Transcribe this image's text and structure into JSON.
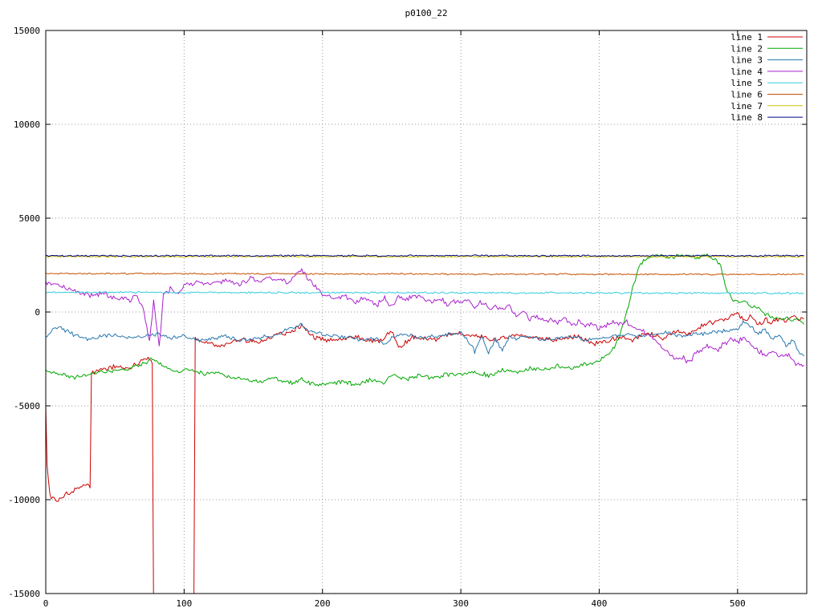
{
  "page": {
    "background": "#ffffff",
    "axis_color": "#000000",
    "grid_color": "#9a9a9a"
  },
  "chart_data": {
    "type": "line",
    "title": "p0100_22",
    "xlabel": "",
    "ylabel": "",
    "xlim": [
      0,
      550
    ],
    "ylim": [
      -15000,
      15000
    ],
    "xticks": [
      0,
      100,
      200,
      300,
      400,
      500
    ],
    "yticks": [
      -15000,
      -10000,
      -5000,
      0,
      5000,
      10000,
      15000
    ],
    "grid": true,
    "grid_style": "dotted",
    "legend_position": "top-right",
    "series": [
      {
        "name": "line 1",
        "color": "#cc0000",
        "noise": 170,
        "seed": 101,
        "keypoints": [
          [
            0,
            -5000
          ],
          [
            1,
            -8200
          ],
          [
            3,
            -9800
          ],
          [
            8,
            -10000
          ],
          [
            15,
            -9700
          ],
          [
            22,
            -9400
          ],
          [
            30,
            -9200
          ],
          [
            32,
            -9300
          ],
          [
            33,
            -3200
          ],
          [
            40,
            -3100
          ],
          [
            50,
            -2900
          ],
          [
            60,
            -3000
          ],
          [
            68,
            -2700
          ],
          [
            74,
            -2500
          ],
          [
            77,
            -2600
          ],
          [
            78,
            -16500
          ],
          [
            107,
            -16500
          ],
          [
            108,
            -1400
          ],
          [
            115,
            -1600
          ],
          [
            125,
            -1800
          ],
          [
            140,
            -1500
          ],
          [
            155,
            -1600
          ],
          [
            165,
            -1200
          ],
          [
            175,
            -1100
          ],
          [
            185,
            -700
          ],
          [
            195,
            -1400
          ],
          [
            210,
            -1500
          ],
          [
            225,
            -1300
          ],
          [
            240,
            -1600
          ],
          [
            250,
            -1000
          ],
          [
            255,
            -1900
          ],
          [
            265,
            -1300
          ],
          [
            280,
            -1500
          ],
          [
            295,
            -1100
          ],
          [
            310,
            -1300
          ],
          [
            325,
            -1500
          ],
          [
            340,
            -1200
          ],
          [
            355,
            -1400
          ],
          [
            370,
            -1500
          ],
          [
            385,
            -1300
          ],
          [
            395,
            -1700
          ],
          [
            405,
            -1600
          ],
          [
            415,
            -1300
          ],
          [
            425,
            -1500
          ],
          [
            435,
            -1100
          ],
          [
            445,
            -1400
          ],
          [
            455,
            -1000
          ],
          [
            465,
            -1200
          ],
          [
            475,
            -700
          ],
          [
            485,
            -500
          ],
          [
            495,
            -300
          ],
          [
            500,
            -100
          ],
          [
            505,
            -400
          ],
          [
            510,
            -200
          ],
          [
            515,
            -700
          ],
          [
            520,
            -400
          ],
          [
            525,
            -600
          ],
          [
            530,
            -300
          ],
          [
            535,
            -500
          ],
          [
            540,
            -200
          ],
          [
            545,
            -400
          ],
          [
            548,
            -300
          ]
        ]
      },
      {
        "name": "line 2",
        "color": "#00a800",
        "noise": 140,
        "seed": 202,
        "keypoints": [
          [
            0,
            -3100
          ],
          [
            10,
            -3300
          ],
          [
            20,
            -3500
          ],
          [
            30,
            -3400
          ],
          [
            40,
            -3200
          ],
          [
            50,
            -3100
          ],
          [
            60,
            -3000
          ],
          [
            70,
            -2800
          ],
          [
            78,
            -2500
          ],
          [
            85,
            -2900
          ],
          [
            95,
            -3200
          ],
          [
            105,
            -3100
          ],
          [
            115,
            -3300
          ],
          [
            125,
            -3200
          ],
          [
            135,
            -3500
          ],
          [
            145,
            -3600
          ],
          [
            155,
            -3700
          ],
          [
            165,
            -3500
          ],
          [
            175,
            -3800
          ],
          [
            185,
            -3600
          ],
          [
            195,
            -3900
          ],
          [
            205,
            -3800
          ],
          [
            215,
            -3700
          ],
          [
            225,
            -3900
          ],
          [
            235,
            -3600
          ],
          [
            245,
            -3800
          ],
          [
            250,
            -3300
          ],
          [
            260,
            -3600
          ],
          [
            270,
            -3400
          ],
          [
            280,
            -3500
          ],
          [
            290,
            -3300
          ],
          [
            300,
            -3300
          ],
          [
            310,
            -3200
          ],
          [
            320,
            -3400
          ],
          [
            330,
            -3100
          ],
          [
            340,
            -3200
          ],
          [
            350,
            -3000
          ],
          [
            360,
            -3100
          ],
          [
            370,
            -2900
          ],
          [
            380,
            -3000
          ],
          [
            390,
            -2800
          ],
          [
            400,
            -2600
          ],
          [
            410,
            -2000
          ],
          [
            415,
            -1200
          ],
          [
            420,
            0
          ],
          [
            425,
            1500
          ],
          [
            430,
            2600
          ],
          [
            435,
            2900
          ],
          [
            440,
            3000
          ],
          [
            450,
            2900
          ],
          [
            460,
            3050
          ],
          [
            470,
            2900
          ],
          [
            478,
            3000
          ],
          [
            485,
            2700
          ],
          [
            488,
            2400
          ],
          [
            492,
            1200
          ],
          [
            496,
            700
          ],
          [
            500,
            500
          ],
          [
            505,
            600
          ],
          [
            510,
            300
          ],
          [
            515,
            200
          ],
          [
            520,
            -100
          ],
          [
            525,
            -200
          ],
          [
            530,
            -400
          ],
          [
            535,
            -300
          ],
          [
            540,
            -500
          ],
          [
            545,
            -400
          ],
          [
            548,
            -600
          ]
        ]
      },
      {
        "name": "line 3",
        "color": "#2878b0",
        "noise": 130,
        "seed": 303,
        "keypoints": [
          [
            0,
            -1400
          ],
          [
            5,
            -900
          ],
          [
            10,
            -800
          ],
          [
            20,
            -1200
          ],
          [
            30,
            -1500
          ],
          [
            40,
            -1300
          ],
          [
            50,
            -1200
          ],
          [
            60,
            -1400
          ],
          [
            70,
            -1300
          ],
          [
            80,
            -1200
          ],
          [
            90,
            -1400
          ],
          [
            100,
            -1300
          ],
          [
            110,
            -1500
          ],
          [
            120,
            -1400
          ],
          [
            130,
            -1300
          ],
          [
            140,
            -1500
          ],
          [
            150,
            -1400
          ],
          [
            160,
            -1300
          ],
          [
            170,
            -1100
          ],
          [
            180,
            -800
          ],
          [
            185,
            -700
          ],
          [
            190,
            -1000
          ],
          [
            200,
            -1200
          ],
          [
            210,
            -1300
          ],
          [
            220,
            -1400
          ],
          [
            230,
            -1500
          ],
          [
            240,
            -1400
          ],
          [
            245,
            -1800
          ],
          [
            250,
            -1300
          ],
          [
            260,
            -1200
          ],
          [
            270,
            -1400
          ],
          [
            280,
            -1300
          ],
          [
            290,
            -1200
          ],
          [
            300,
            -1100
          ],
          [
            305,
            -1500
          ],
          [
            310,
            -2100
          ],
          [
            315,
            -1300
          ],
          [
            320,
            -2200
          ],
          [
            325,
            -1400
          ],
          [
            330,
            -2100
          ],
          [
            335,
            -1300
          ],
          [
            340,
            -1400
          ],
          [
            350,
            -1300
          ],
          [
            360,
            -1500
          ],
          [
            370,
            -1400
          ],
          [
            380,
            -1300
          ],
          [
            390,
            -1500
          ],
          [
            400,
            -1400
          ],
          [
            410,
            -1300
          ],
          [
            420,
            -1200
          ],
          [
            430,
            -1300
          ],
          [
            440,
            -1200
          ],
          [
            450,
            -1100
          ],
          [
            460,
            -1300
          ],
          [
            470,
            -1200
          ],
          [
            480,
            -1100
          ],
          [
            490,
            -1000
          ],
          [
            500,
            -900
          ],
          [
            505,
            -500
          ],
          [
            510,
            -800
          ],
          [
            515,
            -1200
          ],
          [
            520,
            -900
          ],
          [
            525,
            -1500
          ],
          [
            530,
            -1200
          ],
          [
            535,
            -1800
          ],
          [
            540,
            -1500
          ],
          [
            545,
            -2200
          ],
          [
            548,
            -2400
          ]
        ]
      },
      {
        "name": "line 4",
        "color": "#aa22cc",
        "noise": 180,
        "seed": 404,
        "keypoints": [
          [
            0,
            1600
          ],
          [
            10,
            1400
          ],
          [
            20,
            1100
          ],
          [
            30,
            900
          ],
          [
            40,
            1000
          ],
          [
            50,
            800
          ],
          [
            60,
            600
          ],
          [
            65,
            900
          ],
          [
            70,
            300
          ],
          [
            75,
            -1600
          ],
          [
            78,
            500
          ],
          [
            82,
            -1800
          ],
          [
            85,
            800
          ],
          [
            90,
            1200
          ],
          [
            95,
            900
          ],
          [
            100,
            1400
          ],
          [
            110,
            1600
          ],
          [
            120,
            1500
          ],
          [
            130,
            1700
          ],
          [
            140,
            1500
          ],
          [
            150,
            1800
          ],
          [
            155,
            1500
          ],
          [
            160,
            1900
          ],
          [
            165,
            1600
          ],
          [
            170,
            1800
          ],
          [
            175,
            1500
          ],
          [
            180,
            2000
          ],
          [
            185,
            2300
          ],
          [
            190,
            1700
          ],
          [
            195,
            1300
          ],
          [
            200,
            1000
          ],
          [
            205,
            800
          ],
          [
            210,
            600
          ],
          [
            215,
            900
          ],
          [
            220,
            700
          ],
          [
            225,
            500
          ],
          [
            230,
            800
          ],
          [
            235,
            600
          ],
          [
            240,
            400
          ],
          [
            245,
            700
          ],
          [
            250,
            300
          ],
          [
            255,
            900
          ],
          [
            260,
            600
          ],
          [
            265,
            800
          ],
          [
            270,
            900
          ],
          [
            275,
            600
          ],
          [
            280,
            500
          ],
          [
            285,
            700
          ],
          [
            290,
            400
          ],
          [
            295,
            600
          ],
          [
            300,
            500
          ],
          [
            305,
            700
          ],
          [
            310,
            300
          ],
          [
            315,
            500
          ],
          [
            320,
            200
          ],
          [
            325,
            400
          ],
          [
            330,
            100
          ],
          [
            335,
            300
          ],
          [
            340,
            -200
          ],
          [
            345,
            0
          ],
          [
            350,
            -400
          ],
          [
            355,
            -200
          ],
          [
            360,
            -500
          ],
          [
            365,
            -300
          ],
          [
            370,
            -600
          ],
          [
            375,
            -400
          ],
          [
            380,
            -700
          ],
          [
            385,
            -500
          ],
          [
            390,
            -800
          ],
          [
            395,
            -600
          ],
          [
            400,
            -900
          ],
          [
            405,
            -700
          ],
          [
            410,
            -500
          ],
          [
            415,
            -700
          ],
          [
            420,
            -500
          ],
          [
            425,
            -800
          ],
          [
            430,
            -1000
          ],
          [
            435,
            -1200
          ],
          [
            440,
            -1400
          ],
          [
            445,
            -1800
          ],
          [
            450,
            -2200
          ],
          [
            455,
            -2600
          ],
          [
            460,
            -2400
          ],
          [
            465,
            -2700
          ],
          [
            470,
            -2200
          ],
          [
            475,
            -2000
          ],
          [
            480,
            -1800
          ],
          [
            485,
            -2100
          ],
          [
            490,
            -1700
          ],
          [
            495,
            -1500
          ],
          [
            500,
            -1600
          ],
          [
            505,
            -1400
          ],
          [
            510,
            -1800
          ],
          [
            515,
            -2100
          ],
          [
            520,
            -2300
          ],
          [
            525,
            -2000
          ],
          [
            530,
            -2400
          ],
          [
            535,
            -2200
          ],
          [
            540,
            -2600
          ],
          [
            545,
            -2800
          ],
          [
            548,
            -2900
          ]
        ]
      },
      {
        "name": "line 5",
        "color": "#33ccdd",
        "noise": 60,
        "seed": 505,
        "keypoints": [
          [
            0,
            1050
          ],
          [
            548,
            1000
          ]
        ]
      },
      {
        "name": "line 6",
        "color": "#c45000",
        "noise": 50,
        "seed": 606,
        "keypoints": [
          [
            0,
            2050
          ],
          [
            548,
            2000
          ]
        ]
      },
      {
        "name": "line 7",
        "color": "#d4c400",
        "noise": 40,
        "seed": 707,
        "keypoints": [
          [
            0,
            2950
          ],
          [
            548,
            2950
          ]
        ]
      },
      {
        "name": "line 8",
        "color": "#000080",
        "noise": 50,
        "seed": 808,
        "keypoints": [
          [
            0,
            3000
          ],
          [
            548,
            3000
          ]
        ]
      }
    ]
  }
}
